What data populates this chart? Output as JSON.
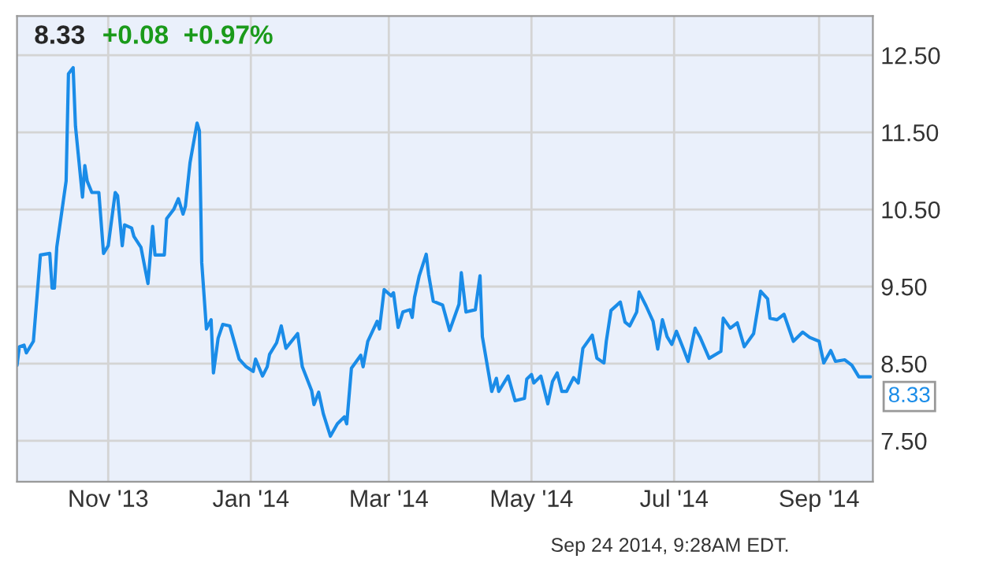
{
  "chart_data": {
    "type": "line",
    "title": "8.33",
    "subtitle": "+0.08  +0.97%",
    "x": [
      "2013-09-23",
      "2013-09-24",
      "2013-09-26",
      "2013-09-27",
      "2013-09-30",
      "2013-10-03",
      "2013-10-07",
      "2013-10-08",
      "2013-10-09",
      "2013-10-10",
      "2013-10-14",
      "2013-10-15",
      "2013-10-17",
      "2013-10-18",
      "2013-10-21",
      "2013-10-22",
      "2013-10-23",
      "2013-10-25",
      "2013-10-28",
      "2013-10-30",
      "2013-11-01",
      "2013-11-04",
      "2013-11-05",
      "2013-11-07",
      "2013-11-08",
      "2013-11-11",
      "2013-11-12",
      "2013-11-15",
      "2013-11-18",
      "2013-11-20",
      "2013-11-21",
      "2013-11-25",
      "2013-11-26",
      "2013-11-29",
      "2013-12-01",
      "2013-12-03",
      "2013-12-04",
      "2013-12-06",
      "2013-12-09",
      "2013-12-10",
      "2013-12-11",
      "2013-12-13",
      "2013-12-15",
      "2013-12-16",
      "2013-12-18",
      "2013-12-20",
      "2013-12-23",
      "2013-12-27",
      "2013-12-30",
      "2014-01-02",
      "2014-01-03",
      "2014-01-06",
      "2014-01-08",
      "2014-01-09",
      "2014-01-12",
      "2014-01-14",
      "2014-01-16",
      "2014-01-21",
      "2014-01-23",
      "2014-01-27",
      "2014-01-28",
      "2014-01-30",
      "2014-02-01",
      "2014-02-04",
      "2014-02-07",
      "2014-02-10",
      "2014-02-11",
      "2014-02-13",
      "2014-02-17",
      "2014-02-18",
      "2014-02-20",
      "2014-02-24",
      "2014-02-25",
      "2014-02-27",
      "2014-03-02",
      "2014-03-03",
      "2014-03-05",
      "2014-03-07",
      "2014-03-10",
      "2014-03-11",
      "2014-03-12",
      "2014-03-14",
      "2014-03-17",
      "2014-03-18",
      "2014-03-20",
      "2014-03-24",
      "2014-03-27",
      "2014-03-31",
      "2014-04-01",
      "2014-04-03",
      "2014-04-07",
      "2014-04-09",
      "2014-04-10",
      "2014-04-14",
      "2014-04-16",
      "2014-04-17",
      "2014-04-21",
      "2014-04-24",
      "2014-04-28",
      "2014-04-29",
      "2014-05-01",
      "2014-05-02",
      "2014-05-05",
      "2014-05-08",
      "2014-05-10",
      "2014-05-12",
      "2014-05-14",
      "2014-05-16",
      "2014-05-19",
      "2014-05-21",
      "2014-05-23",
      "2014-05-27",
      "2014-05-29",
      "2014-06-01",
      "2014-06-02",
      "2014-06-04",
      "2014-06-08",
      "2014-06-10",
      "2014-06-12",
      "2014-06-15",
      "2014-06-16",
      "2014-06-19",
      "2014-06-22",
      "2014-06-24",
      "2014-06-26",
      "2014-06-28",
      "2014-06-30",
      "2014-07-02",
      "2014-07-05",
      "2014-07-07",
      "2014-07-10",
      "2014-07-12",
      "2014-07-16",
      "2014-07-21",
      "2014-07-22",
      "2014-07-25",
      "2014-07-28",
      "2014-07-31",
      "2014-08-04",
      "2014-08-07",
      "2014-08-10",
      "2014-08-11",
      "2014-08-14",
      "2014-08-17",
      "2014-08-21",
      "2014-08-25",
      "2014-08-28",
      "2014-09-01",
      "2014-09-03",
      "2014-09-06",
      "2014-09-08",
      "2014-09-12",
      "2014-09-15",
      "2014-09-18",
      "2014-09-23"
    ],
    "series": [
      {
        "color": "#1a8ce8",
        "values": [
          8.48,
          8.72,
          8.74,
          8.64,
          8.79,
          9.91,
          9.93,
          9.48,
          9.48,
          10.01,
          10.87,
          12.26,
          12.34,
          11.58,
          10.66,
          11.07,
          10.87,
          10.72,
          10.72,
          9.93,
          10.03,
          10.72,
          10.68,
          10.03,
          10.3,
          10.26,
          10.15,
          10.01,
          9.54,
          10.28,
          9.91,
          9.91,
          10.38,
          10.5,
          10.64,
          10.44,
          10.54,
          11.11,
          11.62,
          11.52,
          9.81,
          8.95,
          9.07,
          8.38,
          8.83,
          9.01,
          8.99,
          8.56,
          8.46,
          8.4,
          8.56,
          8.34,
          8.46,
          8.62,
          8.77,
          8.99,
          8.7,
          8.89,
          8.46,
          8.15,
          7.97,
          8.13,
          7.85,
          7.56,
          7.72,
          7.81,
          7.72,
          8.44,
          8.61,
          8.46,
          8.79,
          9.05,
          8.95,
          9.46,
          9.38,
          9.42,
          8.97,
          9.17,
          9.2,
          9.1,
          9.36,
          9.64,
          9.92,
          9.66,
          9.31,
          9.26,
          8.93,
          9.27,
          9.68,
          9.17,
          9.2,
          9.64,
          8.85,
          8.14,
          8.31,
          8.14,
          8.34,
          8.02,
          8.05,
          8.3,
          8.36,
          8.25,
          8.34,
          7.98,
          8.27,
          8.38,
          8.14,
          8.14,
          8.32,
          8.25,
          8.7,
          8.87,
          8.57,
          8.51,
          8.79,
          9.19,
          9.3,
          9.04,
          8.99,
          9.17,
          9.43,
          9.25,
          9.05,
          8.69,
          9.07,
          8.85,
          8.75,
          8.92,
          8.69,
          8.53,
          8.96,
          8.85,
          8.57,
          8.66,
          9.09,
          8.96,
          9.03,
          8.72,
          8.89,
          9.44,
          9.34,
          9.09,
          9.07,
          9.14,
          8.79,
          8.91,
          8.84,
          8.79,
          8.51,
          8.67,
          8.53,
          8.55,
          8.48,
          8.33,
          8.33
        ]
      }
    ],
    "xlim": [
      "2013-09-23",
      "2014-09-24"
    ],
    "xticks": [
      {
        "value": "2013-11-01",
        "label": "Nov '13"
      },
      {
        "value": "2014-01-01",
        "label": "Jan '14"
      },
      {
        "value": "2014-03-01",
        "label": "Mar '14"
      },
      {
        "value": "2014-05-01",
        "label": "May '14"
      },
      {
        "value": "2014-07-01",
        "label": "Jul '14"
      },
      {
        "value": "2014-09-01",
        "label": "Sep '14"
      }
    ],
    "ylim": [
      6.97,
      13.01
    ],
    "yticks": [
      {
        "value": 7.5,
        "label": "7.50"
      },
      {
        "value": 8.5,
        "label": "8.50"
      },
      {
        "value": 9.5,
        "label": "9.50"
      },
      {
        "value": 10.5,
        "label": "10.50"
      },
      {
        "value": 11.5,
        "label": "11.50"
      },
      {
        "value": 12.5,
        "label": "12.50"
      }
    ],
    "grid": true,
    "annotations": [
      {
        "text": "8.33",
        "x": "2014-09-23",
        "y": 8.33
      },
      "Sep 24 2014, 9:28AM EDT."
    ]
  }
}
